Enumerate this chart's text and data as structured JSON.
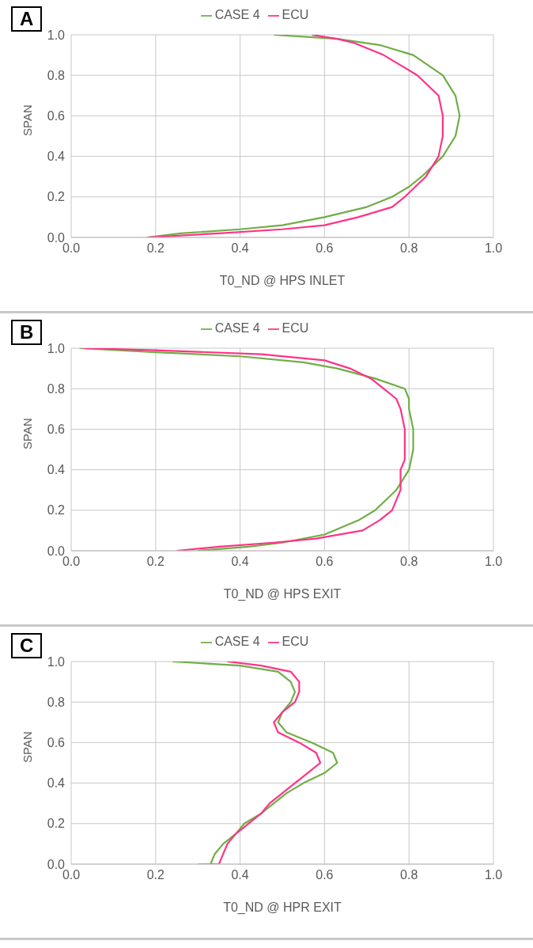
{
  "chart_data": [
    {
      "type": "line",
      "xlabel": "T0_ND @ HPS INLET",
      "ylabel": "SPAN",
      "annotations": [
        "A"
      ],
      "xlim": [
        0,
        1
      ],
      "ylim": [
        0,
        1
      ],
      "xticks": [
        {
          "value": 0,
          "label": "0.0"
        },
        {
          "value": 0.2,
          "label": "0.2"
        },
        {
          "value": 0.4,
          "label": "0.4"
        },
        {
          "value": 0.6,
          "label": "0.6"
        },
        {
          "value": 0.8,
          "label": "0.8"
        },
        {
          "value": 1,
          "label": "1.0"
        }
      ],
      "yticks": [
        {
          "value": 0,
          "label": "0.0"
        },
        {
          "value": 0.2,
          "label": "0.2"
        },
        {
          "value": 0.4,
          "label": "0.4"
        },
        {
          "value": 0.6,
          "label": "0.6"
        },
        {
          "value": 0.8,
          "label": "0.8"
        },
        {
          "value": 1,
          "label": "1.0"
        }
      ],
      "grid": true,
      "legend": "top",
      "marker": "none",
      "line_style": "solid",
      "series": [
        {
          "name": "CASE 4",
          "color": "#70ad47",
          "x": [
            0.18,
            0.26,
            0.4,
            0.5,
            0.6,
            0.7,
            0.76,
            0.8,
            0.83,
            0.88,
            0.91,
            0.92,
            0.91,
            0.88,
            0.81,
            0.73,
            0.63,
            0.48
          ],
          "values": [
            0,
            0.02,
            0.04,
            0.06,
            0.1,
            0.15,
            0.2,
            0.25,
            0.3,
            0.4,
            0.5,
            0.6,
            0.7,
            0.8,
            0.9,
            0.95,
            0.98,
            1.0
          ]
        },
        {
          "name": "ECU",
          "color": "#ff3385",
          "x": [
            0.18,
            0.35,
            0.5,
            0.6,
            0.68,
            0.76,
            0.79,
            0.84,
            0.87,
            0.88,
            0.88,
            0.87,
            0.82,
            0.74,
            0.67,
            0.63,
            0.57
          ],
          "values": [
            0,
            0.02,
            0.04,
            0.06,
            0.1,
            0.15,
            0.2,
            0.3,
            0.4,
            0.5,
            0.6,
            0.7,
            0.8,
            0.9,
            0.96,
            0.98,
            1.0
          ]
        }
      ]
    },
    {
      "type": "line",
      "xlabel": "T0_ND @ HPS EXIT",
      "ylabel": "SPAN",
      "annotations": [
        "B"
      ],
      "xlim": [
        0,
        1
      ],
      "ylim": [
        0,
        1
      ],
      "xticks": [
        {
          "value": 0,
          "label": "0.0"
        },
        {
          "value": 0.2,
          "label": "0.2"
        },
        {
          "value": 0.4,
          "label": "0.4"
        },
        {
          "value": 0.6,
          "label": "0.6"
        },
        {
          "value": 0.8,
          "label": "0.8"
        },
        {
          "value": 1,
          "label": "1.0"
        }
      ],
      "yticks": [
        {
          "value": 0,
          "label": "0.0"
        },
        {
          "value": 0.2,
          "label": "0.2"
        },
        {
          "value": 0.4,
          "label": "0.4"
        },
        {
          "value": 0.6,
          "label": "0.6"
        },
        {
          "value": 0.8,
          "label": "0.8"
        },
        {
          "value": 1,
          "label": "1.0"
        }
      ],
      "grid": true,
      "legend": "top",
      "marker": "none",
      "line_style": "solid",
      "series": [
        {
          "name": "CASE 4",
          "color": "#70ad47",
          "x": [
            0.3,
            0.42,
            0.5,
            0.6,
            0.68,
            0.72,
            0.77,
            0.8,
            0.81,
            0.81,
            0.8,
            0.8,
            0.79,
            0.72,
            0.63,
            0.55,
            0.4,
            0.2,
            0.02
          ],
          "values": [
            0,
            0.02,
            0.04,
            0.08,
            0.15,
            0.2,
            0.3,
            0.4,
            0.5,
            0.6,
            0.7,
            0.75,
            0.8,
            0.85,
            0.9,
            0.93,
            0.96,
            0.98,
            1.0
          ]
        },
        {
          "name": "ECU",
          "color": "#ff3385",
          "x": [
            0.25,
            0.35,
            0.48,
            0.58,
            0.69,
            0.73,
            0.76,
            0.78,
            0.78,
            0.79,
            0.79,
            0.79,
            0.78,
            0.77,
            0.74,
            0.71,
            0.66,
            0.6,
            0.45,
            0.2,
            0.03
          ],
          "values": [
            0,
            0.02,
            0.04,
            0.06,
            0.1,
            0.15,
            0.2,
            0.3,
            0.4,
            0.45,
            0.5,
            0.6,
            0.7,
            0.75,
            0.8,
            0.85,
            0.9,
            0.94,
            0.97,
            0.99,
            1.0
          ]
        }
      ]
    },
    {
      "type": "line",
      "xlabel": "T0_ND @ HPR EXIT",
      "ylabel": "SPAN",
      "annotations": [
        "C"
      ],
      "xlim": [
        0,
        1
      ],
      "ylim": [
        0,
        1
      ],
      "xticks": [
        {
          "value": 0,
          "label": "0.0"
        },
        {
          "value": 0.2,
          "label": "0.2"
        },
        {
          "value": 0.4,
          "label": "0.4"
        },
        {
          "value": 0.6,
          "label": "0.6"
        },
        {
          "value": 0.8,
          "label": "0.8"
        },
        {
          "value": 1,
          "label": "1.0"
        }
      ],
      "yticks": [
        {
          "value": 0,
          "label": "0.0"
        },
        {
          "value": 0.2,
          "label": "0.2"
        },
        {
          "value": 0.4,
          "label": "0.4"
        },
        {
          "value": 0.6,
          "label": "0.6"
        },
        {
          "value": 0.8,
          "label": "0.8"
        },
        {
          "value": 1,
          "label": "1.0"
        }
      ],
      "grid": true,
      "legend": "top",
      "marker": "none",
      "line_style": "solid",
      "series": [
        {
          "name": "CASE 4",
          "color": "#70ad47",
          "x": [
            0.3,
            0.33,
            0.34,
            0.36,
            0.39,
            0.41,
            0.45,
            0.48,
            0.51,
            0.55,
            0.6,
            0.63,
            0.62,
            0.57,
            0.51,
            0.49,
            0.5,
            0.52,
            0.53,
            0.52,
            0.49,
            0.4,
            0.24
          ],
          "values": [
            0,
            0,
            0.05,
            0.1,
            0.15,
            0.2,
            0.25,
            0.3,
            0.35,
            0.4,
            0.45,
            0.5,
            0.55,
            0.6,
            0.65,
            0.7,
            0.75,
            0.8,
            0.85,
            0.9,
            0.95,
            0.98,
            1.0
          ]
        },
        {
          "name": "ECU",
          "color": "#ff3385",
          "x": [
            0.32,
            0.35,
            0.36,
            0.37,
            0.39,
            0.42,
            0.45,
            0.47,
            0.5,
            0.53,
            0.56,
            0.59,
            0.58,
            0.54,
            0.49,
            0.48,
            0.5,
            0.53,
            0.54,
            0.54,
            0.52,
            0.45,
            0.37
          ],
          "values": [
            0,
            0,
            0.05,
            0.1,
            0.15,
            0.2,
            0.25,
            0.3,
            0.35,
            0.4,
            0.45,
            0.5,
            0.55,
            0.6,
            0.65,
            0.7,
            0.75,
            0.8,
            0.85,
            0.9,
            0.95,
            0.98,
            1.0
          ]
        }
      ]
    }
  ]
}
